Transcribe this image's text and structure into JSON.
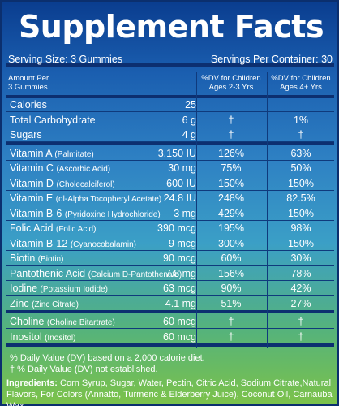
{
  "title": "Supplement Facts",
  "serving_size": "Serving Size: 3 Gummies",
  "servings_per_container": "Servings Per Container: 30",
  "header": {
    "amount_per": "Amount Per",
    "gummies": "3 Gummies",
    "col1_line1": "%DV for Children",
    "col1_line2": "Ages 2-3 Yrs",
    "col2_line1": "%DV for Children",
    "col2_line2": "Ages 4+ Yrs"
  },
  "rows": [
    {
      "name": "Calories",
      "sub": "",
      "amount": "25",
      "dv1": "",
      "dv2": ""
    },
    {
      "name": "Total Carbohydrate",
      "sub": "",
      "amount": "6 g",
      "dv1": "†",
      "dv2": "1%"
    },
    {
      "name": "Sugars",
      "sub": "",
      "amount": "4 g",
      "dv1": "†",
      "dv2": "†"
    },
    {
      "name": "Vitamin A",
      "sub": "(Palmitate)",
      "amount": "3,150 IU",
      "dv1": "126%",
      "dv2": "63%"
    },
    {
      "name": "Vitamin C",
      "sub": "(Ascorbic Acid)",
      "amount": "30 mg",
      "dv1": "75%",
      "dv2": "50%"
    },
    {
      "name": "Vitamin D",
      "sub": "(Cholecalciferol)",
      "amount": "600 IU",
      "dv1": "150%",
      "dv2": "150%"
    },
    {
      "name": "Vitamin E",
      "sub": "(dl-Alpha Tocopheryl Acetate)",
      "amount": "24.8 IU",
      "dv1": "248%",
      "dv2": "82.5%"
    },
    {
      "name": "Vitamin B-6",
      "sub": "(Pyridoxine Hydrochloride)",
      "amount": "3 mg",
      "dv1": "429%",
      "dv2": "150%"
    },
    {
      "name": "Folic Acid",
      "sub": "(Folic Acid)",
      "amount": "390 mcg",
      "dv1": "195%",
      "dv2": "98%"
    },
    {
      "name": "Vitamin B-12",
      "sub": "(Cyanocobalamin)",
      "amount": "9 mcg",
      "dv1": "300%",
      "dv2": "150%"
    },
    {
      "name": "Biotin",
      "sub": "(Biotin)",
      "amount": "90 mcg",
      "dv1": "60%",
      "dv2": "30%"
    },
    {
      "name": "Pantothenic Acid",
      "sub": "(Calcium D-Pantothenate)",
      "amount": "7.8 mg",
      "dv1": "156%",
      "dv2": "78%"
    },
    {
      "name": "Iodine",
      "sub": "(Potassium Iodide)",
      "amount": "63 mcg",
      "dv1": "90%",
      "dv2": "42%"
    },
    {
      "name": "Zinc",
      "sub": "(Zinc Citrate)",
      "amount": "4.1 mg",
      "dv1": "51%",
      "dv2": "27%"
    },
    {
      "name": "Choline",
      "sub": "(Choline Bitartrate)",
      "amount": "60 mcg",
      "dv1": "†",
      "dv2": "†"
    },
    {
      "name": "Inositol",
      "sub": "(Inositol)",
      "amount": "60 mcg",
      "dv1": "†",
      "dv2": "†"
    }
  ],
  "footnote_1": "% Daily Value (DV) based on a 2,000 calorie diet.",
  "footnote_2": "† % Daily Value (DV) not established.",
  "ingredients_label": "Ingredients:",
  "ingredients_text": " Corn Syrup, Sugar, Water, Pectin, Citric Acid, Sodium Citrate,Natural Flavors, For Colors (Annatto, Turmeric & Elderberry Juice), Coconut Oil, Carnauba Wax."
}
